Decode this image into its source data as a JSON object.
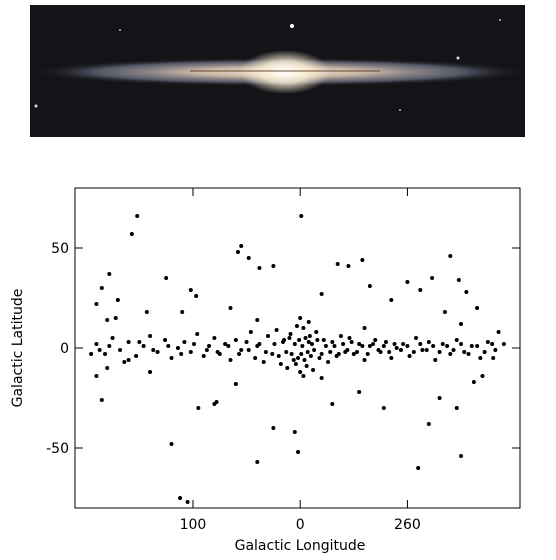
{
  "chart_data": {
    "type": "scatter",
    "xlabel": "Galactic Longitude",
    "ylabel": "Galactic Latitude",
    "xlim": [
      210,
      -205
    ],
    "ylim": [
      -80,
      80
    ],
    "xticks": [
      100,
      0,
      {
        "value": -100,
        "label": "260"
      }
    ],
    "yticks": [
      -50,
      0,
      50
    ],
    "color": "#000000",
    "x": [
      190,
      182,
      175,
      168,
      160,
      153,
      146,
      140,
      133,
      126,
      120,
      114,
      108,
      102,
      96,
      90,
      85,
      80,
      75,
      70,
      65,
      60,
      55,
      50,
      46,
      42,
      38,
      34,
      30,
      26,
      22,
      18,
      15,
      12,
      9,
      6,
      3,
      0,
      -3,
      -6,
      -9,
      -12,
      -15,
      -18,
      -22,
      -26,
      -30,
      -34,
      -38,
      -42,
      -46,
      -50,
      -55,
      -60,
      -65,
      -70,
      -75,
      -80,
      -85,
      -90,
      -96,
      -102,
      -108,
      -114,
      -120,
      -126,
      -133,
      -140,
      -146,
      -153,
      -160,
      -168,
      -175,
      -182,
      187,
      178,
      164,
      150,
      137,
      123,
      111,
      99,
      87,
      77,
      67,
      57,
      48,
      40,
      32,
      24,
      20,
      16,
      13,
      10,
      8,
      5,
      2,
      1,
      -1,
      -2,
      -4,
      -5,
      -7,
      -8,
      -10,
      -11,
      -13,
      -16,
      -20,
      -24,
      -28,
      -32,
      -36,
      -40,
      -44,
      -48,
      -53,
      -58,
      -63,
      -68,
      -73,
      -78,
      -83,
      -88,
      -94,
      -100,
      -106,
      -112,
      -118,
      -124,
      -130,
      -137,
      -143,
      -150,
      -157,
      -165,
      -172,
      -179,
      4,
      -3,
      152,
      157,
      178,
      185,
      170,
      190,
      125,
      102,
      97,
      58,
      55,
      48,
      38,
      25,
      -1,
      -20,
      -35,
      -45,
      -58,
      -65,
      -85,
      -100,
      -112,
      -123,
      -140,
      -148,
      -155,
      -165,
      -150,
      -135,
      -60,
      40,
      65,
      110,
      143,
      180,
      172,
      120,
      112,
      105,
      95,
      80,
      78,
      40,
      25,
      5,
      2,
      -30,
      -78,
      -110,
      -120,
      -150,
      -146,
      -162,
      -170,
      -130,
      -55,
      -20,
      60,
      140,
      180,
      190,
      185,
      160,
      195,
      -190,
      -180,
      -185,
      0,
      -8
    ],
    "values": [
      2,
      -3,
      5,
      -1,
      3,
      -4,
      1,
      6,
      -2,
      4,
      -5,
      0,
      3,
      -2,
      7,
      -4,
      1,
      5,
      -3,
      2,
      -6,
      4,
      -1,
      3,
      8,
      -5,
      2,
      -7,
      6,
      -3,
      9,
      -8,
      4,
      -10,
      7,
      -6,
      11,
      -12,
      10,
      -9,
      6,
      -11,
      8,
      -5,
      4,
      -7,
      3,
      -4,
      6,
      -2,
      5,
      -3,
      2,
      -6,
      1,
      4,
      -2,
      3,
      -5,
      0,
      2,
      -4,
      5,
      -1,
      3,
      -6,
      2,
      -3,
      4,
      -2,
      1,
      -5,
      3,
      -1,
      -1,
      1,
      -7,
      3,
      -1,
      1,
      -3,
      2,
      -1,
      -2,
      1,
      -3,
      -1,
      1,
      -2,
      2,
      -4,
      3,
      -2,
      5,
      -3,
      2,
      -5,
      4,
      -3,
      1,
      -6,
      5,
      -2,
      3,
      -4,
      2,
      -1,
      4,
      -3,
      1,
      -2,
      1,
      -3,
      2,
      -1,
      3,
      -2,
      1,
      -3,
      2,
      -1,
      1,
      -2,
      2,
      -1,
      1,
      -2,
      2,
      -1,
      1,
      -2,
      1,
      -1,
      2,
      -3,
      1,
      -2,
      2,
      -8,
      -14,
      66,
      57,
      37,
      30,
      24,
      22,
      35,
      29,
      26,
      48,
      51,
      45,
      40,
      41,
      66,
      27,
      42,
      41,
      44,
      31,
      24,
      33,
      29,
      35,
      46,
      34,
      28,
      20,
      12,
      18,
      10,
      14,
      20,
      18,
      18,
      14,
      15,
      -48,
      -75,
      -77,
      -30,
      -28,
      -27,
      -57,
      -40,
      -42,
      -52,
      -28,
      -30,
      -60,
      -38,
      -54,
      -30,
      -17,
      -14,
      -25,
      -22,
      -15,
      -18,
      -12,
      -10,
      -14,
      -26,
      -6,
      -3,
      2,
      -5,
      8,
      15,
      13
    ]
  }
}
